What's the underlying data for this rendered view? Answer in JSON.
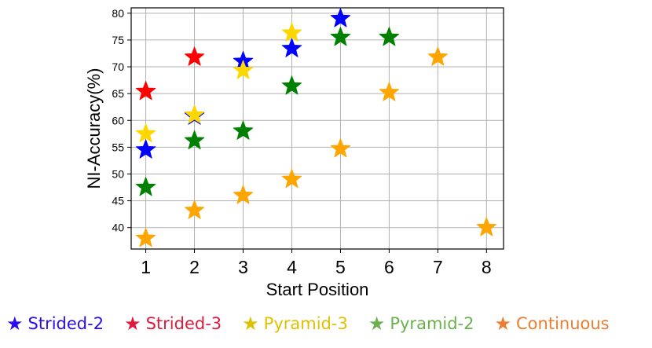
{
  "chart_data": {
    "type": "scatter",
    "marker": "star",
    "xlabel": "Start Position",
    "ylabel": "NI-Accuracy(%)",
    "xlim": [
      0.7,
      8.35
    ],
    "ylim": [
      36.0,
      81.0
    ],
    "xticks": [
      1,
      2,
      3,
      4,
      5,
      6,
      7,
      8
    ],
    "yticks": [
      40,
      45,
      50,
      55,
      60,
      65,
      70,
      75,
      80
    ],
    "grid": true,
    "legend_position": "below",
    "series": [
      {
        "name": "Strided-2",
        "color": "#0000ff",
        "legend_color": "#2b0cf2",
        "x": [
          1,
          2,
          3,
          4,
          5
        ],
        "y": [
          54.5,
          60.8,
          71.0,
          73.4,
          79.0
        ]
      },
      {
        "name": "Strided-3",
        "color": "#ff0000",
        "legend_color": "#e01a3c",
        "x": [
          1,
          2
        ],
        "y": [
          65.4,
          71.8
        ]
      },
      {
        "name": "Pyramid-3",
        "color": "#ffd700",
        "legend_color": "#e0c000",
        "x": [
          1,
          2,
          3,
          4
        ],
        "y": [
          57.5,
          61.0,
          69.3,
          76.3
        ]
      },
      {
        "name": "Pyramid-2",
        "color": "#008000",
        "legend_color": "#6ab04c",
        "x": [
          1,
          2,
          3,
          4,
          5,
          6
        ],
        "y": [
          47.5,
          56.2,
          58.0,
          66.4,
          75.5,
          75.5
        ]
      },
      {
        "name": "Continuous",
        "color": "#ffa500",
        "legend_color": "#ed7d31",
        "x": [
          1,
          2,
          3,
          4,
          5,
          6,
          7,
          8
        ],
        "y": [
          38.0,
          43.2,
          46.0,
          49.0,
          54.7,
          65.2,
          71.8,
          40.0
        ]
      }
    ]
  }
}
